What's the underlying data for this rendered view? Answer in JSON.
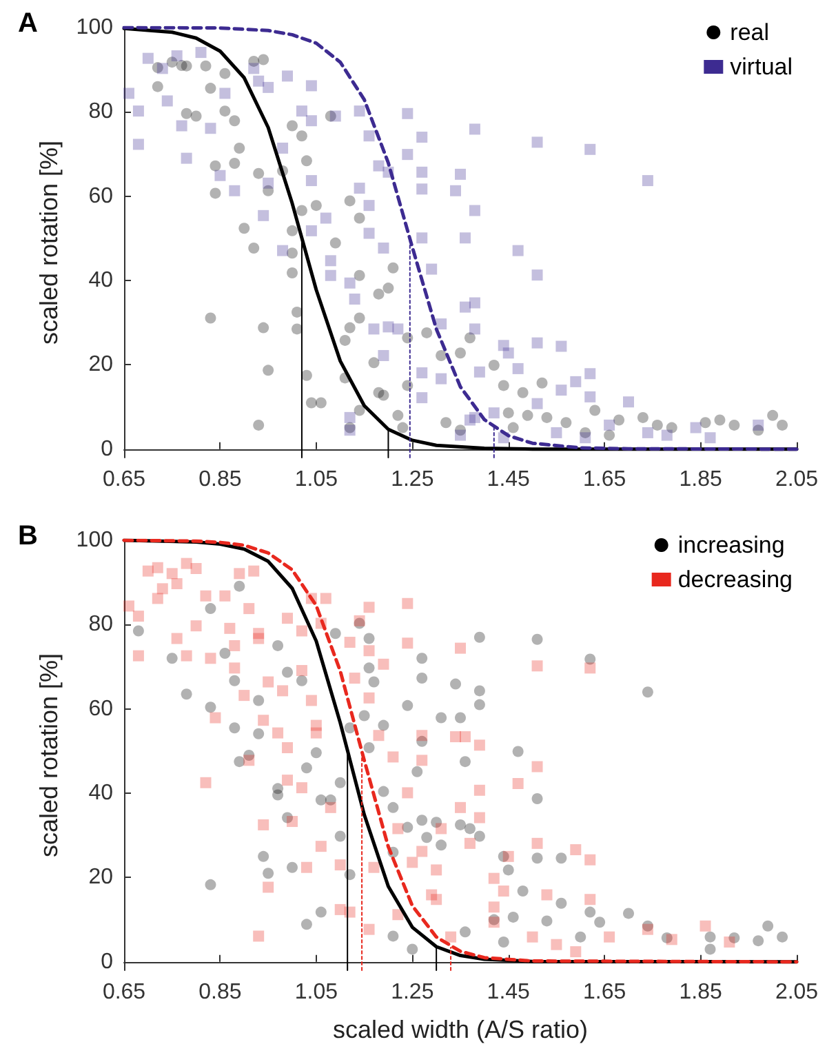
{
  "chart_data": [
    {
      "type": "scatter",
      "title": "A",
      "ylabel": "scaled rotation [%]",
      "xlim": [
        0.65,
        2.05
      ],
      "ylim": [
        -2,
        100
      ],
      "xticks": [
        0.65,
        0.85,
        1.05,
        1.25,
        1.45,
        1.65,
        1.85,
        2.05
      ],
      "yticks": [
        0,
        20,
        40,
        60,
        80,
        100
      ],
      "grid": false,
      "legend": "top right",
      "series": [
        {
          "name": "real",
          "color": "#000000",
          "marker": "circle",
          "x": [
            0.72,
            0.75,
            0.77,
            0.78,
            0.82,
            0.83,
            0.86,
            0.92,
            0.94,
            0.72,
            0.78,
            0.8,
            0.86,
            0.88,
            0.89,
            0.84,
            0.84,
            0.88,
            0.93,
            0.95,
            0.98,
            1.0,
            1.02,
            1.03,
            1.05,
            1.02,
            1.0,
            1.0,
            1.0,
            0.9,
            0.92,
            0.83,
            0.94,
            0.95,
            0.93,
            1.01,
            1.01,
            1.03,
            1.04,
            1.06,
            1.08,
            1.09,
            1.12,
            1.14,
            1.14,
            1.18,
            1.2,
            1.21,
            1.14,
            1.12,
            1.11,
            1.11,
            1.14,
            1.12,
            1.17,
            1.19,
            1.22,
            1.23,
            1.24,
            1.24,
            1.28,
            1.31,
            1.35,
            1.37,
            1.32,
            1.35,
            1.42,
            1.44,
            1.45,
            1.48,
            1.52,
            1.53,
            1.57,
            1.61,
            1.66,
            1.68,
            1.73,
            1.76,
            1.79,
            1.86,
            1.89,
            1.92,
            1.97,
            2.0,
            2.02,
            1.63,
            1.46,
            1.49,
            1.18
          ],
          "values": [
            90.5,
            91.8,
            91,
            90.9,
            90.9,
            85.6,
            89.1,
            92,
            92.4,
            86,
            79.6,
            79,
            80.2,
            77.9,
            71.4,
            67.2,
            60.7,
            67.8,
            65.4,
            61.3,
            66,
            76.7,
            74.3,
            68.4,
            57.8,
            56.6,
            51.8,
            46.5,
            41.8,
            52.4,
            47.7,
            31.1,
            28.8,
            18.7,
            5.7,
            32.5,
            28.5,
            17.5,
            11,
            11,
            79,
            48.9,
            58.9,
            54.8,
            41.2,
            36.8,
            38.2,
            43,
            31.1,
            28.8,
            25.8,
            16.9,
            9.2,
            5.1,
            20.5,
            12.8,
            8,
            5.1,
            26.4,
            15.1,
            27.6,
            22.2,
            22.8,
            26.4,
            6.3,
            4.5,
            19.9,
            15.1,
            8.6,
            13.4,
            15.7,
            7.5,
            6.3,
            3.9,
            3.3,
            6.9,
            7.5,
            5.7,
            5.1,
            6.3,
            6.9,
            5.7,
            4.5,
            8,
            5.7,
            9.2,
            5.1,
            8,
            13.4
          ]
        },
        {
          "name": "virtual",
          "color": "#3d2b91",
          "marker": "square",
          "x": [
            0.66,
            0.68,
            0.68,
            0.7,
            0.73,
            0.76,
            0.81,
            0.74,
            0.77,
            0.78,
            0.83,
            0.86,
            0.85,
            0.88,
            0.92,
            0.93,
            0.95,
            0.99,
            1.04,
            1.04,
            1.09,
            1.14,
            1.16,
            1.02,
            0.98,
            0.95,
            0.94,
            0.98,
            1.04,
            1.04,
            1.07,
            1.08,
            1.08,
            1.12,
            1.13,
            1.14,
            1.16,
            1.16,
            1.19,
            1.18,
            1.2,
            1.24,
            1.24,
            1.27,
            1.27,
            1.27,
            1.27,
            1.29,
            1.35,
            1.34,
            1.36,
            1.38,
            1.38,
            1.38,
            1.38,
            1.36,
            1.17,
            1.2,
            1.22,
            1.19,
            1.31,
            1.31,
            1.27,
            1.27,
            1.12,
            1.12,
            1.39,
            1.44,
            1.45,
            1.47,
            1.47,
            1.51,
            1.51,
            1.51,
            1.51,
            1.56,
            1.59,
            1.62,
            1.62,
            1.62,
            1.56,
            1.7,
            1.74,
            1.74,
            1.78,
            1.84,
            1.87,
            1.97,
            1.66,
            1.55,
            1.44,
            1.42,
            1.38,
            1.35,
            1.37,
            1.61
          ],
          "values": [
            84.4,
            80.2,
            72.3,
            92.7,
            90.3,
            93.3,
            94.1,
            82.6,
            76.7,
            69,
            76.1,
            84.4,
            64.9,
            61.3,
            90.3,
            87.3,
            85.8,
            88.5,
            86.2,
            77.9,
            79,
            80.2,
            74.3,
            80.2,
            71.4,
            63.1,
            55.4,
            47.1,
            51.8,
            63.7,
            54.8,
            44.7,
            41.2,
            39.4,
            35.6,
            61.9,
            57.8,
            51.2,
            47.7,
            67.2,
            65.7,
            79.6,
            69.9,
            74,
            65.7,
            61.7,
            50.1,
            42.7,
            65.2,
            61.3,
            50.1,
            75.9,
            56.6,
            34.7,
            28.5,
            33.7,
            28.5,
            29,
            28.5,
            22.2,
            29.7,
            16.7,
            18.1,
            12.2,
            7.5,
            4.5,
            18.3,
            24.6,
            22.8,
            19.1,
            47.1,
            41.3,
            72.8,
            25.2,
            10.8,
            24.4,
            16,
            17.9,
            12.4,
            71.1,
            14,
            11.2,
            63.7,
            3.9,
            3.3,
            5.1,
            2.7,
            5.7,
            5.7,
            3.9,
            2.7,
            8.6,
            7.5,
            3.3,
            6.9,
            2.7
          ]
        },
        {
          "type": "line",
          "color": "#000000",
          "line_style": "solid",
          "x": [
            0.65,
            0.75,
            0.8,
            0.85,
            0.9,
            0.95,
            1.0,
            1.05,
            1.1,
            1.15,
            1.2,
            1.25,
            1.3,
            1.4,
            1.5,
            2.05
          ],
          "values": [
            99.8,
            98.9,
            97.5,
            94.4,
            88.1,
            76.3,
            58.3,
            37.8,
            20.9,
            10.3,
            4.7,
            2.1,
            0.9,
            0.2,
            0,
            0
          ]
        },
        {
          "type": "line",
          "color": "#3d2b91",
          "line_style": "dashed",
          "x": [
            0.65,
            0.85,
            0.95,
            1.0,
            1.05,
            1.1,
            1.15,
            1.2,
            1.25,
            1.3,
            1.35,
            1.4,
            1.45,
            1.5,
            1.6,
            1.7,
            2.05
          ],
          "values": [
            100,
            99.9,
            99.3,
            98.3,
            96.3,
            91.8,
            82.9,
            67.9,
            47.9,
            28.5,
            14.8,
            7,
            3.2,
            1.4,
            0.3,
            0.1,
            0
          ]
        },
        {
          "type": "line",
          "color": "#000000",
          "line_style": "solid",
          "x": [
            1.02,
            1.02
          ],
          "values": [
            -2,
            50
          ]
        },
        {
          "type": "line",
          "color": "#000000",
          "line_style": "solid",
          "x": [
            1.2,
            1.2
          ],
          "values": [
            -2,
            4.7
          ]
        },
        {
          "type": "line",
          "color": "#3d2b91",
          "line_style": "dotted",
          "x": [
            1.245,
            1.245
          ],
          "values": [
            -2,
            50
          ]
        },
        {
          "type": "line",
          "color": "#3d2b91",
          "line_style": "dotted",
          "x": [
            1.42,
            1.42
          ],
          "values": [
            -2,
            5.2
          ]
        }
      ]
    },
    {
      "type": "scatter",
      "title": "B",
      "xlabel": "scaled width (A/S ratio)",
      "ylabel": "scaled rotation [%]",
      "xlim": [
        0.65,
        2.05
      ],
      "ylim": [
        -2,
        100
      ],
      "xticks": [
        0.65,
        0.85,
        1.05,
        1.25,
        1.45,
        1.65,
        1.85,
        2.05
      ],
      "yticks": [
        0,
        20,
        40,
        60,
        80,
        100
      ],
      "grid": false,
      "legend": "top right",
      "series": [
        {
          "name": "increasing",
          "color": "#000000",
          "marker": "circle",
          "x": [
            0.68,
            0.75,
            0.78,
            0.83,
            0.83,
            0.83,
            0.86,
            0.88,
            0.88,
            0.89,
            0.89,
            0.91,
            0.93,
            0.93,
            0.94,
            0.95,
            0.97,
            0.97,
            0.97,
            0.99,
            0.99,
            1.0,
            1.03,
            1.06,
            1.02,
            1.03,
            1.05,
            1.06,
            1.08,
            1.09,
            1.1,
            1.1,
            1.12,
            1.12,
            1.14,
            1.16,
            1.15,
            1.16,
            1.17,
            1.16,
            1.19,
            1.19,
            1.21,
            1.21,
            1.21,
            1.24,
            1.24,
            1.25,
            1.26,
            1.27,
            1.27,
            1.27,
            1.27,
            1.28,
            1.3,
            1.31,
            1.31,
            1.34,
            1.35,
            1.36,
            1.35,
            1.37,
            1.39,
            1.39,
            1.39,
            1.39,
            1.44,
            1.45,
            1.47,
            1.48,
            1.51,
            1.51,
            1.51,
            1.56,
            1.53,
            1.56,
            1.62,
            1.62,
            1.64,
            1.7,
            1.74,
            1.74,
            1.78,
            1.87,
            1.87,
            1.92,
            1.97,
            1.99,
            2.02,
            1.6,
            1.46,
            1.44,
            1.36,
            1.42
          ],
          "values": [
            78.5,
            72,
            63.5,
            18.3,
            83.8,
            60.4,
            73.2,
            55.5,
            66.7,
            89.1,
            47.5,
            49,
            62,
            54.1,
            25,
            21,
            75,
            41.1,
            39.6,
            68.7,
            34.2,
            22.4,
            8.9,
            11.8,
            66.7,
            46,
            49.6,
            38.4,
            38.4,
            77.9,
            42.5,
            29.8,
            20.7,
            55.5,
            80.3,
            76.7,
            58.4,
            69.7,
            66.4,
            50.8,
            56.1,
            40.4,
            36.6,
            26,
            6.1,
            60.8,
            31.9,
            3,
            45.1,
            72,
            67.3,
            52.3,
            33.6,
            29.5,
            33.1,
            27.7,
            57.9,
            65.9,
            57.9,
            47.5,
            32.5,
            31.6,
            77,
            64.3,
            61,
            29.8,
            25,
            21.8,
            49.9,
            16.8,
            76.5,
            38.7,
            24.6,
            24.6,
            9.7,
            13.9,
            71.8,
            11.8,
            9.4,
            11.5,
            64,
            8.5,
            5.7,
            3,
            5.9,
            5.7,
            5,
            8.5,
            5.9,
            5.9,
            10.6,
            4.7,
            7.1,
            10
          ]
        },
        {
          "name": "decreasing",
          "color": "#e8281e",
          "marker": "square",
          "x": [
            0.66,
            0.68,
            0.68,
            0.7,
            0.72,
            0.72,
            0.73,
            0.75,
            0.76,
            0.76,
            0.78,
            0.78,
            0.8,
            0.8,
            0.82,
            0.82,
            0.83,
            0.84,
            0.86,
            0.87,
            0.88,
            0.88,
            0.89,
            0.9,
            0.91,
            0.91,
            0.92,
            0.93,
            0.93,
            0.94,
            0.94,
            0.95,
            0.93,
            0.95,
            0.97,
            0.98,
            0.99,
            0.99,
            1.0,
            0.99,
            1.02,
            1.02,
            1.03,
            1.02,
            1.04,
            1.04,
            1.05,
            1.05,
            1.06,
            1.06,
            1.07,
            1.08,
            1.1,
            1.1,
            1.12,
            1.12,
            1.13,
            1.14,
            1.16,
            1.16,
            1.16,
            1.16,
            1.17,
            1.18,
            1.19,
            1.21,
            1.22,
            1.22,
            1.24,
            1.24,
            1.24,
            1.25,
            1.27,
            1.27,
            1.27,
            1.29,
            1.3,
            1.3,
            1.31,
            1.34,
            1.35,
            1.35,
            1.36,
            1.37,
            1.39,
            1.39,
            1.39,
            1.42,
            1.42,
            1.44,
            1.45,
            1.47,
            1.51,
            1.51,
            1.51,
            1.53,
            1.59,
            1.62,
            1.62,
            1.62,
            1.86,
            1.91,
            1.74,
            1.79,
            1.55,
            1.5,
            1.42,
            1.33,
            1.66,
            1.59
          ],
          "values": [
            84.4,
            82,
            72.6,
            92.7,
            93.5,
            86.2,
            88.5,
            92.1,
            89.7,
            76.7,
            72.6,
            94.5,
            93.3,
            79.7,
            86.8,
            42.5,
            72,
            57.9,
            86.8,
            79.1,
            75,
            69.7,
            92.1,
            63.2,
            83.8,
            47.8,
            92.7,
            77.9,
            76.7,
            57.3,
            32.5,
            17.7,
            6.1,
            66.4,
            54.3,
            64.3,
            50.8,
            43.1,
            33.3,
            81.5,
            78.5,
            69.1,
            22.4,
            41.3,
            86.2,
            62,
            54.3,
            56.1,
            80.3,
            27.4,
            86.2,
            36.6,
            23,
            12.4,
            11.8,
            75.8,
            67.3,
            80.9,
            84.1,
            62.6,
            73.8,
            7.7,
            22.4,
            53.7,
            70.6,
            48.6,
            31.6,
            11.2,
            85,
            75.6,
            40.1,
            23.6,
            47.8,
            53.7,
            26.2,
            15.9,
            21.8,
            14.8,
            31.6,
            53.4,
            74.4,
            36.6,
            53.4,
            28.1,
            51.4,
            40.7,
            34.2,
            19.8,
            13,
            16.8,
            25,
            42.3,
            70.2,
            46.3,
            28.1,
            15.9,
            26.6,
            24.2,
            14.8,
            69.7,
            8.5,
            4.7,
            7.7,
            5.3,
            4.1,
            5.9,
            9.4,
            5.9,
            5.9,
            2.4
          ]
        },
        {
          "type": "line",
          "color": "#000000",
          "line_style": "solid",
          "x": [
            0.65,
            0.8,
            0.85,
            0.9,
            0.95,
            1.0,
            1.05,
            1.1,
            1.15,
            1.2,
            1.25,
            1.3,
            1.35,
            1.4,
            1.5,
            2.05
          ],
          "values": [
            100,
            99.6,
            99.1,
            97.9,
            95,
            88.6,
            76.1,
            56.7,
            34.9,
            17.9,
            8.2,
            3.6,
            1.5,
            0.6,
            0.1,
            0
          ]
        },
        {
          "type": "line",
          "color": "#e8281e",
          "line_style": "dashed",
          "x": [
            0.65,
            0.8,
            0.85,
            0.9,
            0.95,
            1.0,
            1.05,
            1.1,
            1.15,
            1.2,
            1.25,
            1.3,
            1.35,
            1.4,
            1.5,
            2.05
          ],
          "values": [
            100,
            99.8,
            99.5,
            98.8,
            97,
            93,
            84.5,
            69,
            47.8,
            27.3,
            13.3,
            5.9,
            2.5,
            1,
            0.2,
            0
          ]
        },
        {
          "type": "line",
          "color": "#000000",
          "line_style": "solid",
          "x": [
            1.115,
            1.115
          ],
          "values": [
            -2,
            50
          ]
        },
        {
          "type": "line",
          "color": "#000000",
          "line_style": "solid",
          "x": [
            1.3,
            1.3
          ],
          "values": [
            -2,
            3.6
          ]
        },
        {
          "type": "line",
          "color": "#e8281e",
          "line_style": "dotted",
          "x": [
            1.145,
            1.145
          ],
          "values": [
            -2,
            50
          ]
        },
        {
          "type": "line",
          "color": "#e8281e",
          "line_style": "dotted",
          "x": [
            1.33,
            1.33
          ],
          "values": [
            -2,
            3.4
          ]
        }
      ]
    }
  ]
}
